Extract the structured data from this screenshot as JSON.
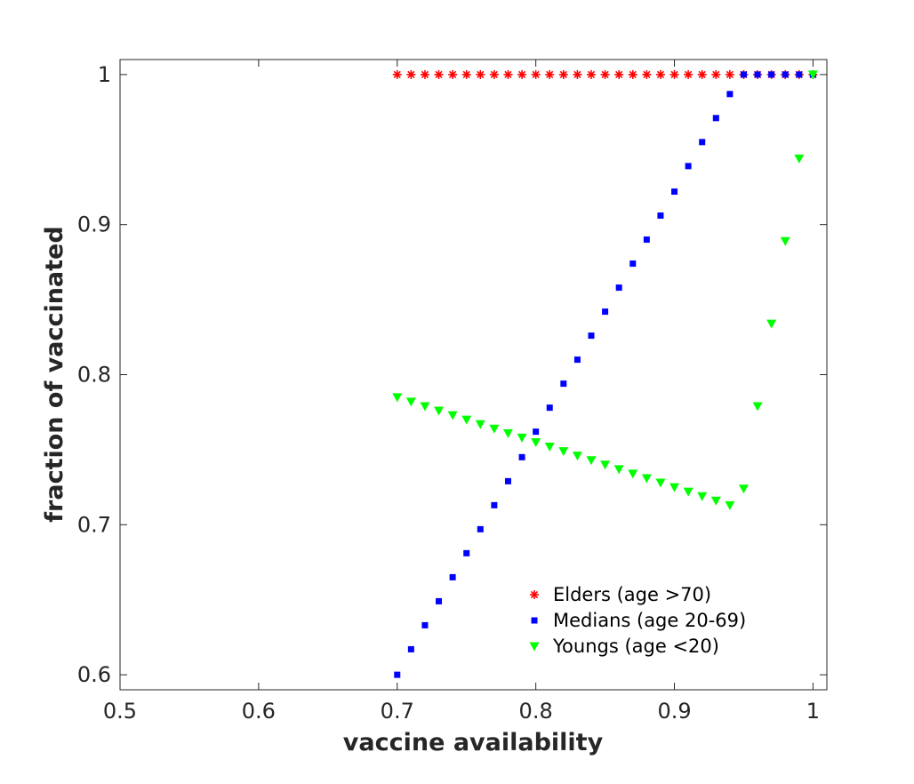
{
  "chart_data": {
    "type": "scatter",
    "xlabel": "vaccine availability",
    "ylabel": "fraction of vaccinated",
    "xlim": [
      0.5,
      1.01
    ],
    "ylim": [
      0.59,
      1.01
    ],
    "x_ticks": [
      0.5,
      0.6,
      0.7,
      0.8,
      0.9,
      1.0
    ],
    "x_tick_labels": [
      "0.5",
      "0.6",
      "0.7",
      "0.8",
      "0.9",
      "1"
    ],
    "y_ticks": [
      0.6,
      0.7,
      0.8,
      0.9,
      1.0
    ],
    "y_tick_labels": [
      "0.6",
      "0.7",
      "0.8",
      "0.9",
      "1"
    ],
    "grid": false,
    "legend_position": "bottom-right",
    "x": [
      0.7,
      0.71,
      0.72,
      0.73,
      0.74,
      0.75,
      0.76,
      0.77,
      0.78,
      0.79,
      0.8,
      0.81,
      0.82,
      0.83,
      0.84,
      0.85,
      0.86,
      0.87,
      0.88,
      0.89,
      0.9,
      0.91,
      0.92,
      0.93,
      0.94,
      0.95,
      0.96,
      0.97,
      0.98,
      0.99,
      1.0
    ],
    "series": [
      {
        "name": "Elders (age >70)",
        "marker": "asterisk",
        "color": "#ff0000",
        "values": [
          1,
          1,
          1,
          1,
          1,
          1,
          1,
          1,
          1,
          1,
          1,
          1,
          1,
          1,
          1,
          1,
          1,
          1,
          1,
          1,
          1,
          1,
          1,
          1,
          1,
          1,
          1,
          1,
          1,
          1,
          1
        ]
      },
      {
        "name": "Medians (age 20-69)",
        "marker": "square",
        "color": "#0000ff",
        "values": [
          0.6,
          0.617,
          0.633,
          0.649,
          0.665,
          0.681,
          0.697,
          0.713,
          0.729,
          0.745,
          0.762,
          0.778,
          0.794,
          0.81,
          0.826,
          0.842,
          0.858,
          0.874,
          0.89,
          0.906,
          0.922,
          0.939,
          0.955,
          0.971,
          0.987,
          1,
          1,
          1,
          1,
          1,
          1
        ]
      },
      {
        "name": "Youngs (age <20)",
        "marker": "triangle-down",
        "color": "#00ff00",
        "values": [
          0.785,
          0.782,
          0.779,
          0.776,
          0.773,
          0.77,
          0.767,
          0.764,
          0.761,
          0.758,
          0.755,
          0.752,
          0.749,
          0.746,
          0.743,
          0.74,
          0.737,
          0.734,
          0.731,
          0.728,
          0.725,
          0.722,
          0.719,
          0.716,
          0.713,
          0.724,
          0.779,
          0.834,
          0.889,
          0.944,
          1
        ]
      }
    ]
  }
}
